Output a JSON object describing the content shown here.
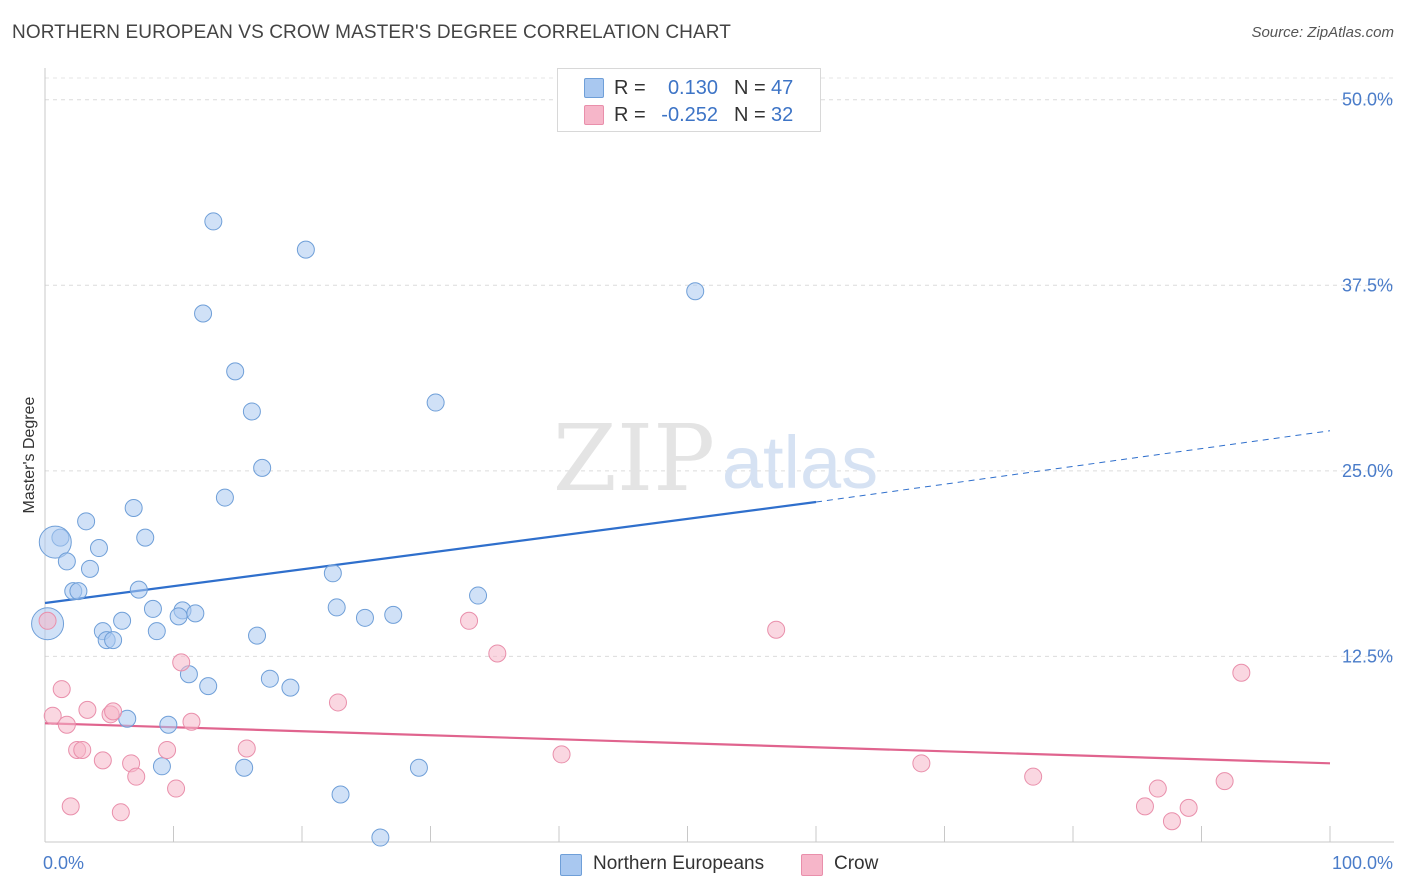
{
  "title": "NORTHERN EUROPEAN VS CROW MASTER'S DEGREE CORRELATION CHART",
  "source": "Source: ZipAtlas.com",
  "watermark": {
    "zip": "ZIP",
    "atlas": "atlas"
  },
  "legend": {
    "r_label": "R =",
    "n_label": "N =",
    "rows": [
      {
        "series": "Northern Europeans",
        "r": "0.130",
        "n": "47",
        "color": "#a9c8f0"
      },
      {
        "series": "Crow",
        "r": "-0.252",
        "n": "32",
        "color": "#f6b6c9"
      }
    ]
  },
  "chart_data": {
    "type": "scatter",
    "title": "NORTHERN EUROPEAN VS CROW MASTER'S DEGREE CORRELATION CHART",
    "xlabel": "",
    "ylabel": "Master's Degree",
    "xlim": [
      0,
      100
    ],
    "ylim": [
      0,
      52
    ],
    "x_ticks": [
      "0.0%",
      "100.0%"
    ],
    "y_ticks": [
      {
        "value": 12.5,
        "label": "12.5%"
      },
      {
        "value": 25.0,
        "label": "25.0%"
      },
      {
        "value": 37.5,
        "label": "37.5%"
      },
      {
        "value": 50.0,
        "label": "50.0%"
      }
    ],
    "series": [
      {
        "name": "Northern Europeans",
        "color": "#a9c8f0",
        "stroke": "#6f9fd8",
        "line_color": "#2f6fcc",
        "trend": {
          "x0": 0,
          "y0": 16.1,
          "x1": 60,
          "y1": 22.9,
          "dash_to_x": 100,
          "dash_to_y": 27.7
        },
        "points": [
          [
            13.1,
            41.8
          ],
          [
            20.3,
            39.9
          ],
          [
            12.3,
            35.6
          ],
          [
            50.6,
            37.1
          ],
          [
            14.8,
            31.7
          ],
          [
            16.1,
            29.0
          ],
          [
            30.4,
            29.6
          ],
          [
            16.9,
            25.2
          ],
          [
            14.0,
            23.2
          ],
          [
            6.9,
            22.5
          ],
          [
            3.2,
            21.6
          ],
          [
            7.8,
            20.5
          ],
          [
            1.2,
            20.5
          ],
          [
            0.8,
            20.2
          ],
          [
            4.2,
            19.8
          ],
          [
            1.7,
            18.9
          ],
          [
            3.5,
            18.4
          ],
          [
            22.4,
            18.1
          ],
          [
            2.2,
            16.9
          ],
          [
            2.6,
            16.9
          ],
          [
            7.3,
            17.0
          ],
          [
            33.7,
            16.6
          ],
          [
            8.4,
            15.7
          ],
          [
            10.7,
            15.6
          ],
          [
            22.7,
            15.8
          ],
          [
            10.4,
            15.2
          ],
          [
            11.7,
            15.4
          ],
          [
            24.9,
            15.1
          ],
          [
            27.1,
            15.3
          ],
          [
            6.0,
            14.9
          ],
          [
            0.2,
            14.7
          ],
          [
            4.5,
            14.2
          ],
          [
            8.7,
            14.2
          ],
          [
            16.5,
            13.9
          ],
          [
            4.8,
            13.6
          ],
          [
            5.3,
            13.6
          ],
          [
            11.2,
            11.3
          ],
          [
            17.5,
            11.0
          ],
          [
            12.7,
            10.5
          ],
          [
            19.1,
            10.4
          ],
          [
            6.4,
            8.3
          ],
          [
            9.6,
            7.9
          ],
          [
            9.1,
            5.1
          ],
          [
            15.5,
            5.0
          ],
          [
            29.1,
            5.0
          ],
          [
            23.0,
            3.2
          ],
          [
            26.1,
            0.3
          ]
        ]
      },
      {
        "name": "Crow",
        "color": "#f6b6c9",
        "stroke": "#e98fab",
        "line_color": "#e0648e",
        "trend": {
          "x0": 0,
          "y0": 8.0,
          "x1": 100,
          "y1": 5.3
        },
        "points": [
          [
            0.2,
            14.9
          ],
          [
            33.0,
            14.9
          ],
          [
            56.9,
            14.3
          ],
          [
            35.2,
            12.7
          ],
          [
            10.6,
            12.1
          ],
          [
            93.1,
            11.4
          ],
          [
            1.3,
            10.3
          ],
          [
            22.8,
            9.4
          ],
          [
            3.3,
            8.9
          ],
          [
            5.1,
            8.6
          ],
          [
            5.3,
            8.8
          ],
          [
            0.6,
            8.5
          ],
          [
            1.7,
            7.9
          ],
          [
            11.4,
            8.1
          ],
          [
            2.5,
            6.2
          ],
          [
            2.9,
            6.2
          ],
          [
            9.5,
            6.2
          ],
          [
            15.7,
            6.3
          ],
          [
            40.2,
            5.9
          ],
          [
            4.5,
            5.5
          ],
          [
            6.7,
            5.3
          ],
          [
            68.2,
            5.3
          ],
          [
            7.1,
            4.4
          ],
          [
            76.9,
            4.4
          ],
          [
            10.2,
            3.6
          ],
          [
            86.6,
            3.6
          ],
          [
            91.8,
            4.1
          ],
          [
            2.0,
            2.4
          ],
          [
            85.6,
            2.4
          ],
          [
            89.0,
            2.3
          ],
          [
            5.9,
            2.0
          ],
          [
            87.7,
            1.4
          ]
        ]
      }
    ]
  }
}
